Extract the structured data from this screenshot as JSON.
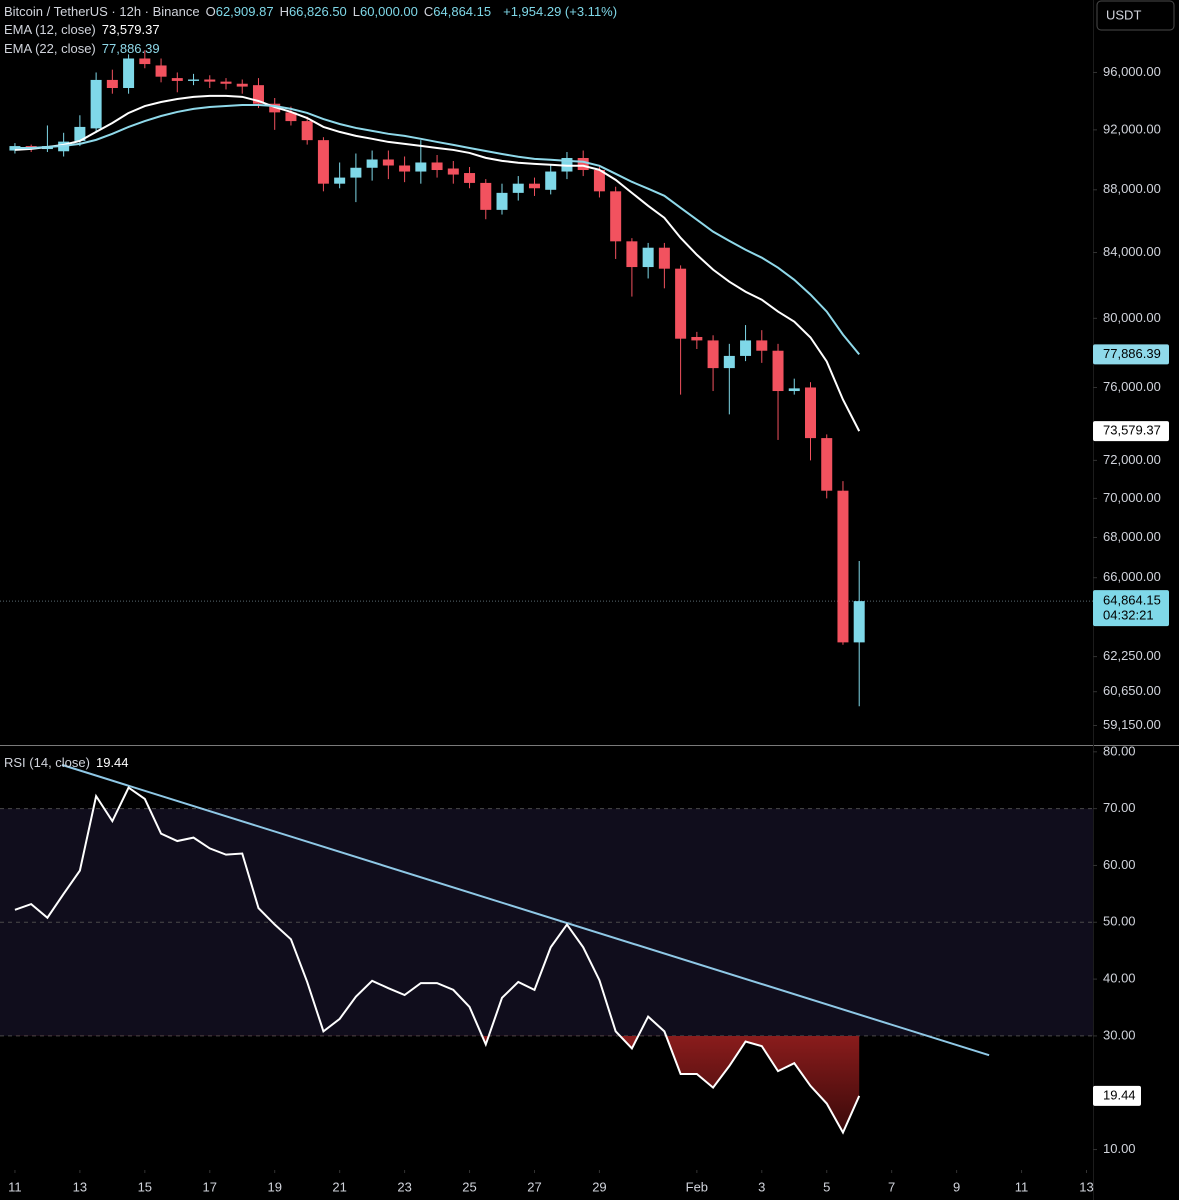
{
  "chart_data": [
    {
      "type": "candlestick",
      "title": "Bitcoin / TetherUS · 12h · Binance",
      "ohlc_legend": [
        {
          "key": "O",
          "label": "62,909.87"
        },
        {
          "key": "H",
          "label": "66,826.50"
        },
        {
          "key": "L",
          "label": "60,000.00"
        },
        {
          "key": "C",
          "label": "64,864.15"
        }
      ],
      "change": "+1,954.29 (+3.11%)",
      "currency": "USDT",
      "x": [
        0,
        0.5,
        1,
        1.5,
        2,
        2.5,
        3,
        3.5,
        4,
        4.5,
        5,
        5.5,
        6,
        6.5,
        7,
        7.5,
        8,
        8.5,
        9,
        9.5,
        10,
        10.5,
        11,
        11.5,
        12,
        12.5,
        13,
        13.5,
        14,
        14.5,
        15,
        15.5,
        16,
        16.5,
        17,
        17.5,
        18,
        18.5,
        19,
        19.5,
        20,
        20.5,
        21,
        21.5,
        22,
        22.5,
        23,
        23.5,
        24,
        24.5,
        25,
        25.5,
        26
      ],
      "open": [
        90600,
        90900,
        90700,
        90550,
        91250,
        92100,
        95470,
        94900,
        97000,
        96500,
        95600,
        95400,
        95500,
        95350,
        95200,
        95100,
        93800,
        93200,
        92600,
        91300,
        88400,
        88800,
        89450,
        90000,
        89600,
        89200,
        89800,
        89400,
        89100,
        88450,
        86700,
        87800,
        88400,
        88000,
        89200,
        90100,
        89300,
        87900,
        84700,
        83100,
        84300,
        83000,
        78900,
        78700,
        77100,
        77800,
        78700,
        78100,
        75800,
        76000,
        73200,
        70400,
        62909.87
      ],
      "high": [
        91100,
        91000,
        92300,
        91800,
        93000,
        96000,
        96200,
        97300,
        97600,
        97000,
        96000,
        95900,
        95800,
        95600,
        95500,
        95600,
        94200,
        93600,
        92900,
        91500,
        89800,
        90400,
        90600,
        90600,
        90200,
        91300,
        90300,
        89900,
        89500,
        88700,
        88400,
        88900,
        88800,
        89600,
        90500,
        90600,
        89500,
        88200,
        84900,
        84600,
        84600,
        83200,
        79200,
        79000,
        78500,
        79600,
        79300,
        78500,
        76500,
        76300,
        73400,
        70900,
        66826.5
      ],
      "low": [
        90400,
        90500,
        90500,
        90200,
        90900,
        91800,
        94500,
        94500,
        96300,
        95300,
        94600,
        95100,
        94900,
        94800,
        94500,
        93500,
        92000,
        92300,
        91000,
        87900,
        88100,
        87200,
        88600,
        88700,
        88500,
        88400,
        88800,
        88400,
        88100,
        86100,
        86400,
        87300,
        87600,
        87700,
        88700,
        88900,
        87500,
        83600,
        81300,
        82400,
        81800,
        75600,
        78200,
        75800,
        74500,
        77500,
        77400,
        73100,
        75600,
        72000,
        70000,
        62800,
        60000
      ],
      "close": [
        90900,
        90700,
        90900,
        91200,
        92200,
        95470,
        94900,
        97000,
        96600,
        95700,
        95400,
        95500,
        95350,
        95200,
        95000,
        93800,
        93200,
        92600,
        91300,
        88400,
        88800,
        89450,
        90000,
        89600,
        89200,
        89800,
        89300,
        89000,
        88450,
        86700,
        87800,
        88400,
        88100,
        89200,
        90100,
        89300,
        87900,
        84700,
        83100,
        84300,
        83000,
        78800,
        78700,
        77100,
        77800,
        78700,
        78100,
        75800,
        75950,
        73200,
        70400,
        62910,
        64864.15
      ],
      "up_color": "#7fd8e8",
      "down_color": "#f2525f",
      "series": [
        {
          "name": "EMA (12, close)",
          "type": "line",
          "color": "#ffffff",
          "last_label": "73,579.37",
          "values": [
            90640,
            90710,
            90840,
            90980,
            91250,
            91860,
            92470,
            93160,
            93640,
            93920,
            94130,
            94280,
            94350,
            94350,
            94280,
            93990,
            93570,
            93230,
            92810,
            92200,
            91860,
            91590,
            91390,
            91180,
            91050,
            90910,
            90770,
            90640,
            90440,
            90110,
            89910,
            89780,
            89710,
            89650,
            89580,
            89580,
            89310,
            88650,
            87800,
            86960,
            86190,
            84920,
            83860,
            82940,
            82200,
            81590,
            81110,
            80400,
            79800,
            78870,
            77480,
            75320,
            73579.37
          ]
        },
        {
          "name": "EMA (22, close)",
          "type": "line",
          "color": "#8fd9ea",
          "last_label": "77,886.39",
          "values": [
            90770,
            90770,
            90840,
            90910,
            91050,
            91320,
            91730,
            92200,
            92600,
            92950,
            93230,
            93440,
            93570,
            93640,
            93710,
            93710,
            93640,
            93440,
            93160,
            92740,
            92400,
            92130,
            91930,
            91730,
            91590,
            91390,
            91180,
            90980,
            90770,
            90570,
            90370,
            90180,
            90040,
            89980,
            89910,
            89850,
            89580,
            89050,
            88520,
            88070,
            87610,
            86830,
            86070,
            85310,
            84730,
            84170,
            83680,
            83060,
            82320,
            81420,
            80400,
            79040,
            77886.39
          ]
        }
      ],
      "last_price_label": "64,864.15",
      "countdown": "04:32:21",
      "log_scale": true,
      "xlim": [
        -0.46,
        33.2
      ],
      "ylim": [
        58300,
        101300
      ],
      "yticks": [
        {
          "value": 96000,
          "label": "96,000.00"
        },
        {
          "value": 92000,
          "label": "92,000.00"
        },
        {
          "value": 88000,
          "label": "88,000.00"
        },
        {
          "value": 84000,
          "label": "84,000.00"
        },
        {
          "value": 80000,
          "label": "80,000.00"
        },
        {
          "value": 76000,
          "label": "76,000.00"
        },
        {
          "value": 72000,
          "label": "72,000.00"
        },
        {
          "value": 70000,
          "label": "70,000.00"
        },
        {
          "value": 68000,
          "label": "68,000.00"
        },
        {
          "value": 66000,
          "label": "66,000.00"
        },
        {
          "value": 62250,
          "label": "62,250.00"
        },
        {
          "value": 60650,
          "label": "60,650.00"
        },
        {
          "value": 59150,
          "label": "59,150.00"
        }
      ]
    },
    {
      "type": "line",
      "x": [
        0,
        0.5,
        1,
        1.5,
        2,
        2.5,
        3,
        3.5,
        4,
        4.5,
        5,
        5.5,
        6,
        6.5,
        7,
        7.5,
        8,
        8.5,
        9,
        9.5,
        10,
        10.5,
        11,
        11.5,
        12,
        12.5,
        13,
        13.5,
        14,
        14.5,
        15,
        15.5,
        16,
        16.5,
        17,
        17.5,
        18,
        18.5,
        19,
        19.5,
        20,
        20.5,
        21,
        21.5,
        22,
        22.5,
        23,
        23.5,
        24,
        24.5,
        25,
        25.5,
        26
      ],
      "series": [
        {
          "name": "RSI (14, close)",
          "color": "#ffffff",
          "last_label": "19.44",
          "values": [
            52.2,
            53.2,
            50.8,
            55.0,
            59.1,
            72.2,
            67.8,
            73.7,
            71.7,
            65.6,
            64.3,
            64.9,
            63.0,
            61.9,
            62.1,
            52.5,
            49.6,
            47.0,
            39.5,
            30.8,
            33.0,
            36.9,
            39.7,
            38.4,
            37.2,
            39.3,
            39.3,
            38.1,
            35.1,
            28.5,
            36.7,
            39.5,
            38.1,
            45.6,
            49.6,
            45.6,
            39.8,
            30.8,
            27.8,
            33.4,
            30.8,
            23.3,
            23.3,
            20.9,
            24.7,
            29.0,
            28.2,
            23.8,
            25.2,
            21.2,
            18.1,
            13.0,
            19.44
          ]
        }
      ],
      "overbought": 70,
      "midline": 50,
      "oversold": 30,
      "band_color": "#100d1c",
      "oversold_color": "#8a1c1c",
      "trendline": {
        "x": [
          1.45,
          30
        ],
        "values": [
          77.7,
          26.6
        ],
        "color": "#8fc8e6"
      },
      "xlim": [
        -0.46,
        33.2
      ],
      "ylim": [
        6.4,
        81.2
      ],
      "yticks": [
        {
          "value": 80,
          "label": "80.00"
        },
        {
          "value": 70,
          "label": "70.00"
        },
        {
          "value": 60,
          "label": "60.00"
        },
        {
          "value": 50,
          "label": "50.00"
        },
        {
          "value": 40,
          "label": "40.00"
        },
        {
          "value": 30,
          "label": "30.00"
        },
        {
          "value": 10,
          "label": "10.00"
        }
      ],
      "xticks": [
        {
          "value": 0,
          "label": "11"
        },
        {
          "value": 2,
          "label": "13"
        },
        {
          "value": 4,
          "label": "15"
        },
        {
          "value": 6,
          "label": "17"
        },
        {
          "value": 8,
          "label": "19"
        },
        {
          "value": 10,
          "label": "21"
        },
        {
          "value": 12,
          "label": "23"
        },
        {
          "value": 14,
          "label": "25"
        },
        {
          "value": 16,
          "label": "27"
        },
        {
          "value": 18,
          "label": "29"
        },
        {
          "value": 21,
          "label": "Feb"
        },
        {
          "value": 23,
          "label": "3"
        },
        {
          "value": 25,
          "label": "5"
        },
        {
          "value": 27,
          "label": "7"
        },
        {
          "value": 29,
          "label": "9"
        },
        {
          "value": 31,
          "label": "11"
        },
        {
          "value": 33,
          "label": "13"
        }
      ]
    }
  ]
}
